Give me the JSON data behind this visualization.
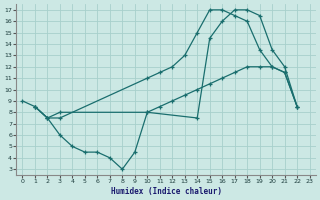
{
  "xlabel": "Humidex (Indice chaleur)",
  "background_color": "#cce8e4",
  "grid_color": "#a8d0cc",
  "line_color": "#1a6e6e",
  "xlim": [
    -0.5,
    23.5
  ],
  "ylim": [
    2.5,
    17.5
  ],
  "xticks": [
    0,
    1,
    2,
    3,
    4,
    5,
    6,
    7,
    8,
    9,
    10,
    11,
    12,
    13,
    14,
    15,
    16,
    17,
    18,
    19,
    20,
    21,
    22,
    23
  ],
  "yticks": [
    3,
    4,
    5,
    6,
    7,
    8,
    9,
    10,
    11,
    12,
    13,
    14,
    15,
    16,
    17
  ],
  "line1_x": [
    1,
    2,
    3,
    10,
    11,
    12,
    13,
    14,
    15,
    16,
    17,
    18,
    19,
    20,
    21,
    22
  ],
  "line1_y": [
    8.5,
    7.5,
    7.5,
    11,
    11.5,
    12,
    13,
    15,
    17,
    17,
    16.5,
    16,
    13.5,
    12,
    11.5,
    8.5
  ],
  "line2_x": [
    1,
    2,
    3,
    10,
    11,
    12,
    13,
    14,
    15,
    16,
    17,
    18,
    19,
    20,
    21,
    22
  ],
  "line2_y": [
    8.5,
    7.5,
    8,
    8,
    8.5,
    9,
    9.5,
    10,
    10.5,
    11,
    11.5,
    12,
    12,
    12,
    11.5,
    8.5
  ],
  "line3_x": [
    0,
    1,
    2,
    3,
    4,
    5,
    6,
    7,
    8,
    9,
    10,
    14,
    15,
    16,
    17,
    18,
    19,
    20,
    21,
    22
  ],
  "line3_y": [
    9,
    8.5,
    7.5,
    6,
    5,
    4.5,
    4.5,
    4,
    3,
    4.5,
    8,
    7.5,
    14.5,
    16,
    17,
    17,
    16.5,
    13.5,
    12,
    8.5
  ]
}
